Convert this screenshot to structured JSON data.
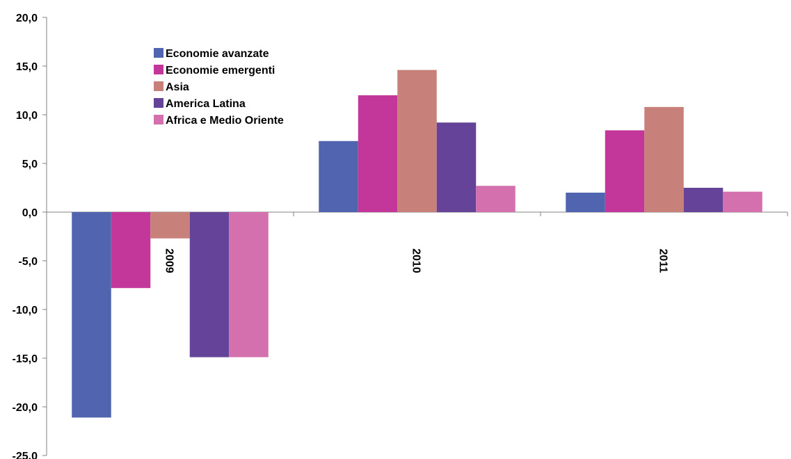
{
  "chart_data": {
    "type": "bar",
    "categories": [
      "2009",
      "2010",
      "2011"
    ],
    "series": [
      {
        "name": "Economie avanzate",
        "color": "#5064b0",
        "values": [
          -21.1,
          7.3,
          2.0
        ]
      },
      {
        "name": "Economie emergenti",
        "color": "#c4379a",
        "values": [
          -7.8,
          12.0,
          8.4
        ]
      },
      {
        "name": "Asia",
        "color": "#c8807a",
        "values": [
          -2.7,
          14.6,
          10.8
        ]
      },
      {
        "name": "America Latina",
        "color": "#654399",
        "values": [
          -14.9,
          9.2,
          2.5
        ]
      },
      {
        "name": "Africa e Medio Oriente",
        "color": "#d570ae",
        "values": [
          -14.9,
          2.7,
          2.1
        ]
      }
    ],
    "yticks": [
      "20,0",
      "15,0",
      "10,0",
      "5,0",
      "0,0",
      "-5,0",
      "-10,0",
      "-15,0",
      "-20,0",
      "-25,0"
    ],
    "ylim": [
      -25,
      20
    ],
    "ytick_step": 5,
    "legend_position": "top-left inside plot",
    "grid": false
  }
}
